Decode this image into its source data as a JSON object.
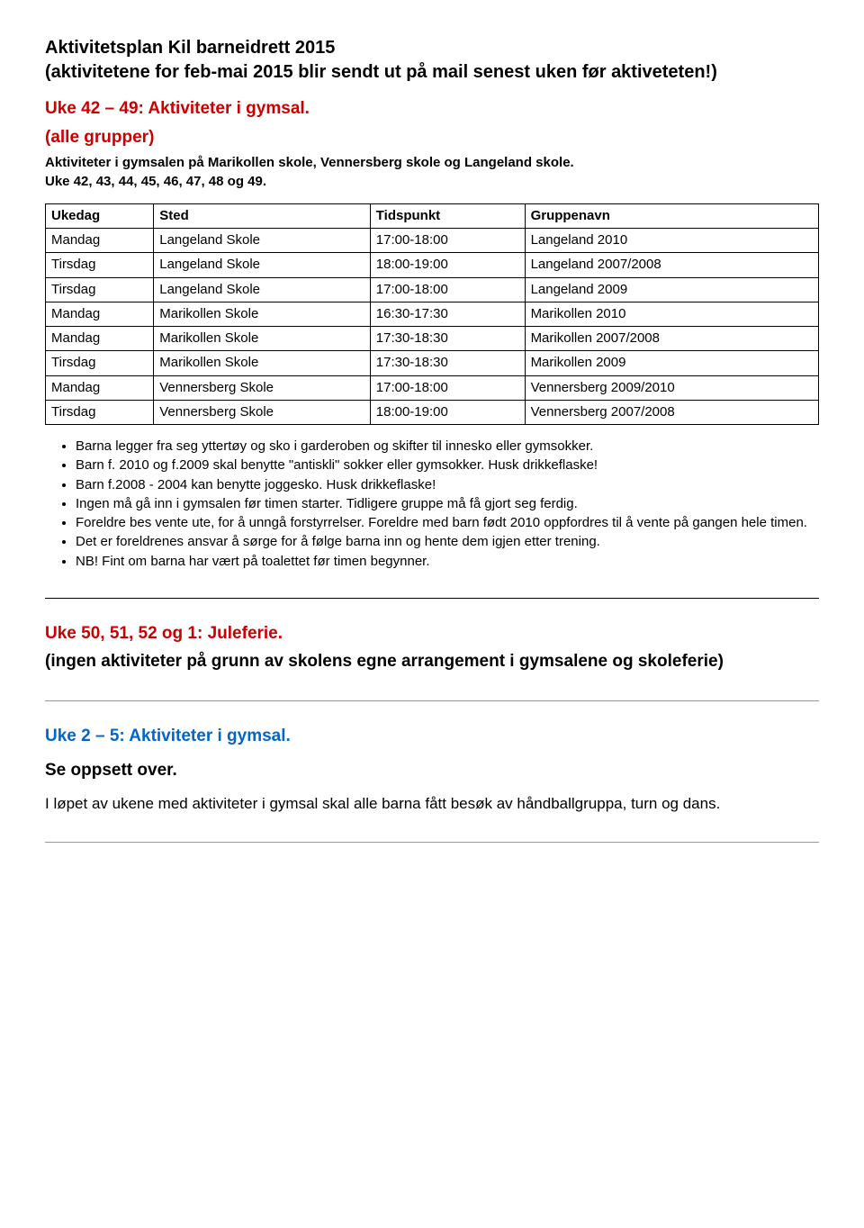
{
  "header": {
    "line1": "Aktivitetsplan Kil barneidrett 2015",
    "line2": "(aktivitetene for feb-mai 2015 blir sendt ut på mail senest uken før aktiveteten!)"
  },
  "section1": {
    "title": "Uke 42 – 49: Aktiviteter i gymsal.",
    "subtitle": "(alle grupper)",
    "para1": "Aktiviteter i gymsalen på Marikollen skole, Vennersberg skole og Langeland skole.",
    "para2": "Uke 42, 43, 44, 45, 46, 47, 48 og 49."
  },
  "table": {
    "headers": [
      "Ukedag",
      "Sted",
      "Tidspunkt",
      "Gruppenavn"
    ],
    "rows": [
      [
        "Mandag",
        "Langeland Skole",
        "17:00-18:00",
        "Langeland 2010"
      ],
      [
        "Tirsdag",
        "Langeland Skole",
        "18:00-19:00",
        "Langeland 2007/2008"
      ],
      [
        "Tirsdag",
        "Langeland Skole",
        "17:00-18:00",
        "Langeland 2009"
      ],
      [
        "Mandag",
        "Marikollen Skole",
        "16:30-17:30",
        "Marikollen 2010"
      ],
      [
        "Mandag",
        "Marikollen Skole",
        "17:30-18:30",
        "Marikollen 2007/2008"
      ],
      [
        "Tirsdag",
        "Marikollen Skole",
        "17:30-18:30",
        "Marikollen 2009"
      ],
      [
        "Mandag",
        "Vennersberg Skole",
        "17:00-18:00",
        "Vennersberg 2009/2010"
      ],
      [
        "Tirsdag",
        "Vennersberg Skole",
        "18:00-19:00",
        "Vennersberg 2007/2008"
      ]
    ],
    "col_widths": [
      "14%",
      "28%",
      "20%",
      "38%"
    ]
  },
  "bullets": [
    "Barna legger fra seg yttertøy og sko i garderoben og skifter til innesko eller gymsokker.",
    "Barn f. 2010 og f.2009 skal benytte \"antiskli\" sokker eller gymsokker. Husk drikkeflaske!",
    "Barn f.2008 - 2004 kan benytte joggesko. Husk drikkeflaske!",
    "Ingen må gå inn i gymsalen før timen starter. Tidligere gruppe må få gjort seg ferdig.",
    "Foreldre bes vente ute, for å unngå forstyrrelser. Foreldre med barn født 2010 oppfordres til å vente på gangen hele timen.",
    "Det er foreldrenes ansvar å sørge for å følge barna inn og hente dem igjen etter trening.",
    "NB! Fint om barna har vært på toalettet før timen begynner."
  ],
  "section2": {
    "title": "Uke 50, 51, 52  og 1: Juleferie.",
    "sub1": "(ingen aktiviteter på grunn av skolens egne arrangement i gymsalene og skoleferie)"
  },
  "section3": {
    "title": "Uke 2 – 5: Aktiviteter i gymsal.",
    "sub": "Se oppsett over.",
    "para": "I løpet av ukene med aktiviteter i gymsal skal alle barna fått besøk av håndballgruppa, turn og dans."
  },
  "colors": {
    "red": "#cc0000",
    "blue": "#0066cc",
    "text": "#000000",
    "bg": "#ffffff",
    "border": "#000000"
  }
}
